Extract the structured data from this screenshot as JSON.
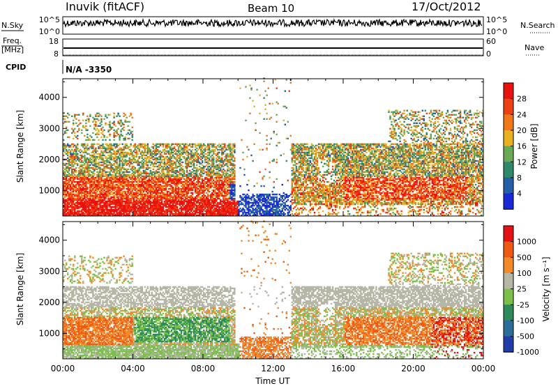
{
  "header": {
    "station": "Inuvik (fitACF)",
    "beam": "Beam 10",
    "date": "17/Oct/2012"
  },
  "top_panels": {
    "nsky_label": "N.Sky",
    "nsky_ticks": [
      "10^5",
      "10^0"
    ],
    "nsearch_label": "N.Search",
    "nsearch_ticks": [
      "10^5",
      "10^0"
    ],
    "freq_label": "Freq.",
    "freq_unit": "[MHz]",
    "freq_ticks": [
      "18",
      "8"
    ],
    "nave_label": "Nave",
    "nave_ticks": [
      "60",
      "0"
    ],
    "cpid_label": "CPID",
    "cpid_value": "N/A -3350"
  },
  "colors": {
    "power": [
      "#1a2bd6",
      "#245fa8",
      "#2f8a6a",
      "#6aaa55",
      "#e9b021",
      "#f07818",
      "#ee4015",
      "#e8120e"
    ],
    "velocity": [
      "#1f3ea8",
      "#2c6e9a",
      "#2f8a5c",
      "#7ac04a",
      "#b6b6a6",
      "#f28a2a",
      "#ee5a14",
      "#e41212"
    ]
  },
  "chart_data": [
    {
      "type": "heatmap",
      "name": "power",
      "ylabel": "Slant Range [km]",
      "yticks": [
        1000,
        2000,
        3000,
        4000
      ],
      "ylim": [
        180,
        4600
      ],
      "xlim": [
        0,
        24
      ],
      "colorbar_label": "Power [dB]",
      "colorbar_ticks": [
        4,
        8,
        12,
        16,
        20,
        24,
        28
      ],
      "colorbar_range": [
        0,
        32
      ]
    },
    {
      "type": "heatmap",
      "name": "velocity",
      "ylabel": "Slant Range [km]",
      "yticks": [
        1000,
        2000,
        3000,
        4000
      ],
      "ylim": [
        180,
        4600
      ],
      "xlim": [
        0,
        24
      ],
      "colorbar_label": "Velocity [m s⁻¹]",
      "colorbar_ticks": [
        1000,
        500,
        100,
        25,
        -25,
        -100,
        -500,
        -1000
      ]
    }
  ],
  "xaxis": {
    "label": "Time UT",
    "ticks": [
      "00:00",
      "04:00",
      "08:00",
      "12:00",
      "16:00",
      "20:00",
      "00:00"
    ],
    "tick_hours": [
      0,
      4,
      8,
      12,
      16,
      20,
      24
    ]
  }
}
